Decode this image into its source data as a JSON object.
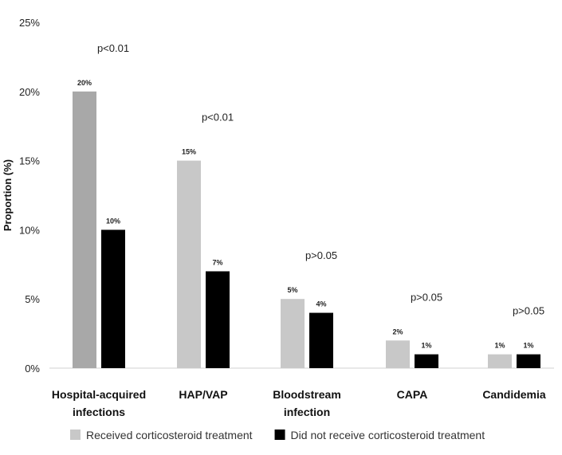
{
  "chart_data": {
    "type": "bar",
    "categories": [
      [
        "Hospital-acquired",
        "infections"
      ],
      [
        "HAP/VAP"
      ],
      [
        "Bloodstream",
        "infection"
      ],
      [
        "CAPA"
      ],
      [
        "Candidemia"
      ]
    ],
    "series": [
      {
        "name": "Received corticosteroid treatment",
        "color": "#c8c8c8",
        "values": [
          20,
          15,
          5,
          2,
          1
        ],
        "labels": [
          "20%",
          "15%",
          "5%",
          "2%",
          "1%"
        ]
      },
      {
        "name": "Did not receive corticosteroid treatment",
        "color": "#000000",
        "values": [
          10,
          7,
          4,
          1,
          1
        ],
        "labels": [
          "10%",
          "7%",
          "4%",
          "1%",
          "1%"
        ]
      }
    ],
    "first_bar_color": "#a8a8a8",
    "p_values": [
      "p<0.01",
      "p<0.01",
      "p>0.05",
      "p>0.05",
      "p>0.05"
    ],
    "ylabel": "Proportion (%)",
    "yticks": [
      "0%",
      "5%",
      "10%",
      "15%",
      "20%",
      "25%"
    ],
    "ylim": [
      0,
      25
    ],
    "grid": false,
    "legend_position": "bottom"
  }
}
